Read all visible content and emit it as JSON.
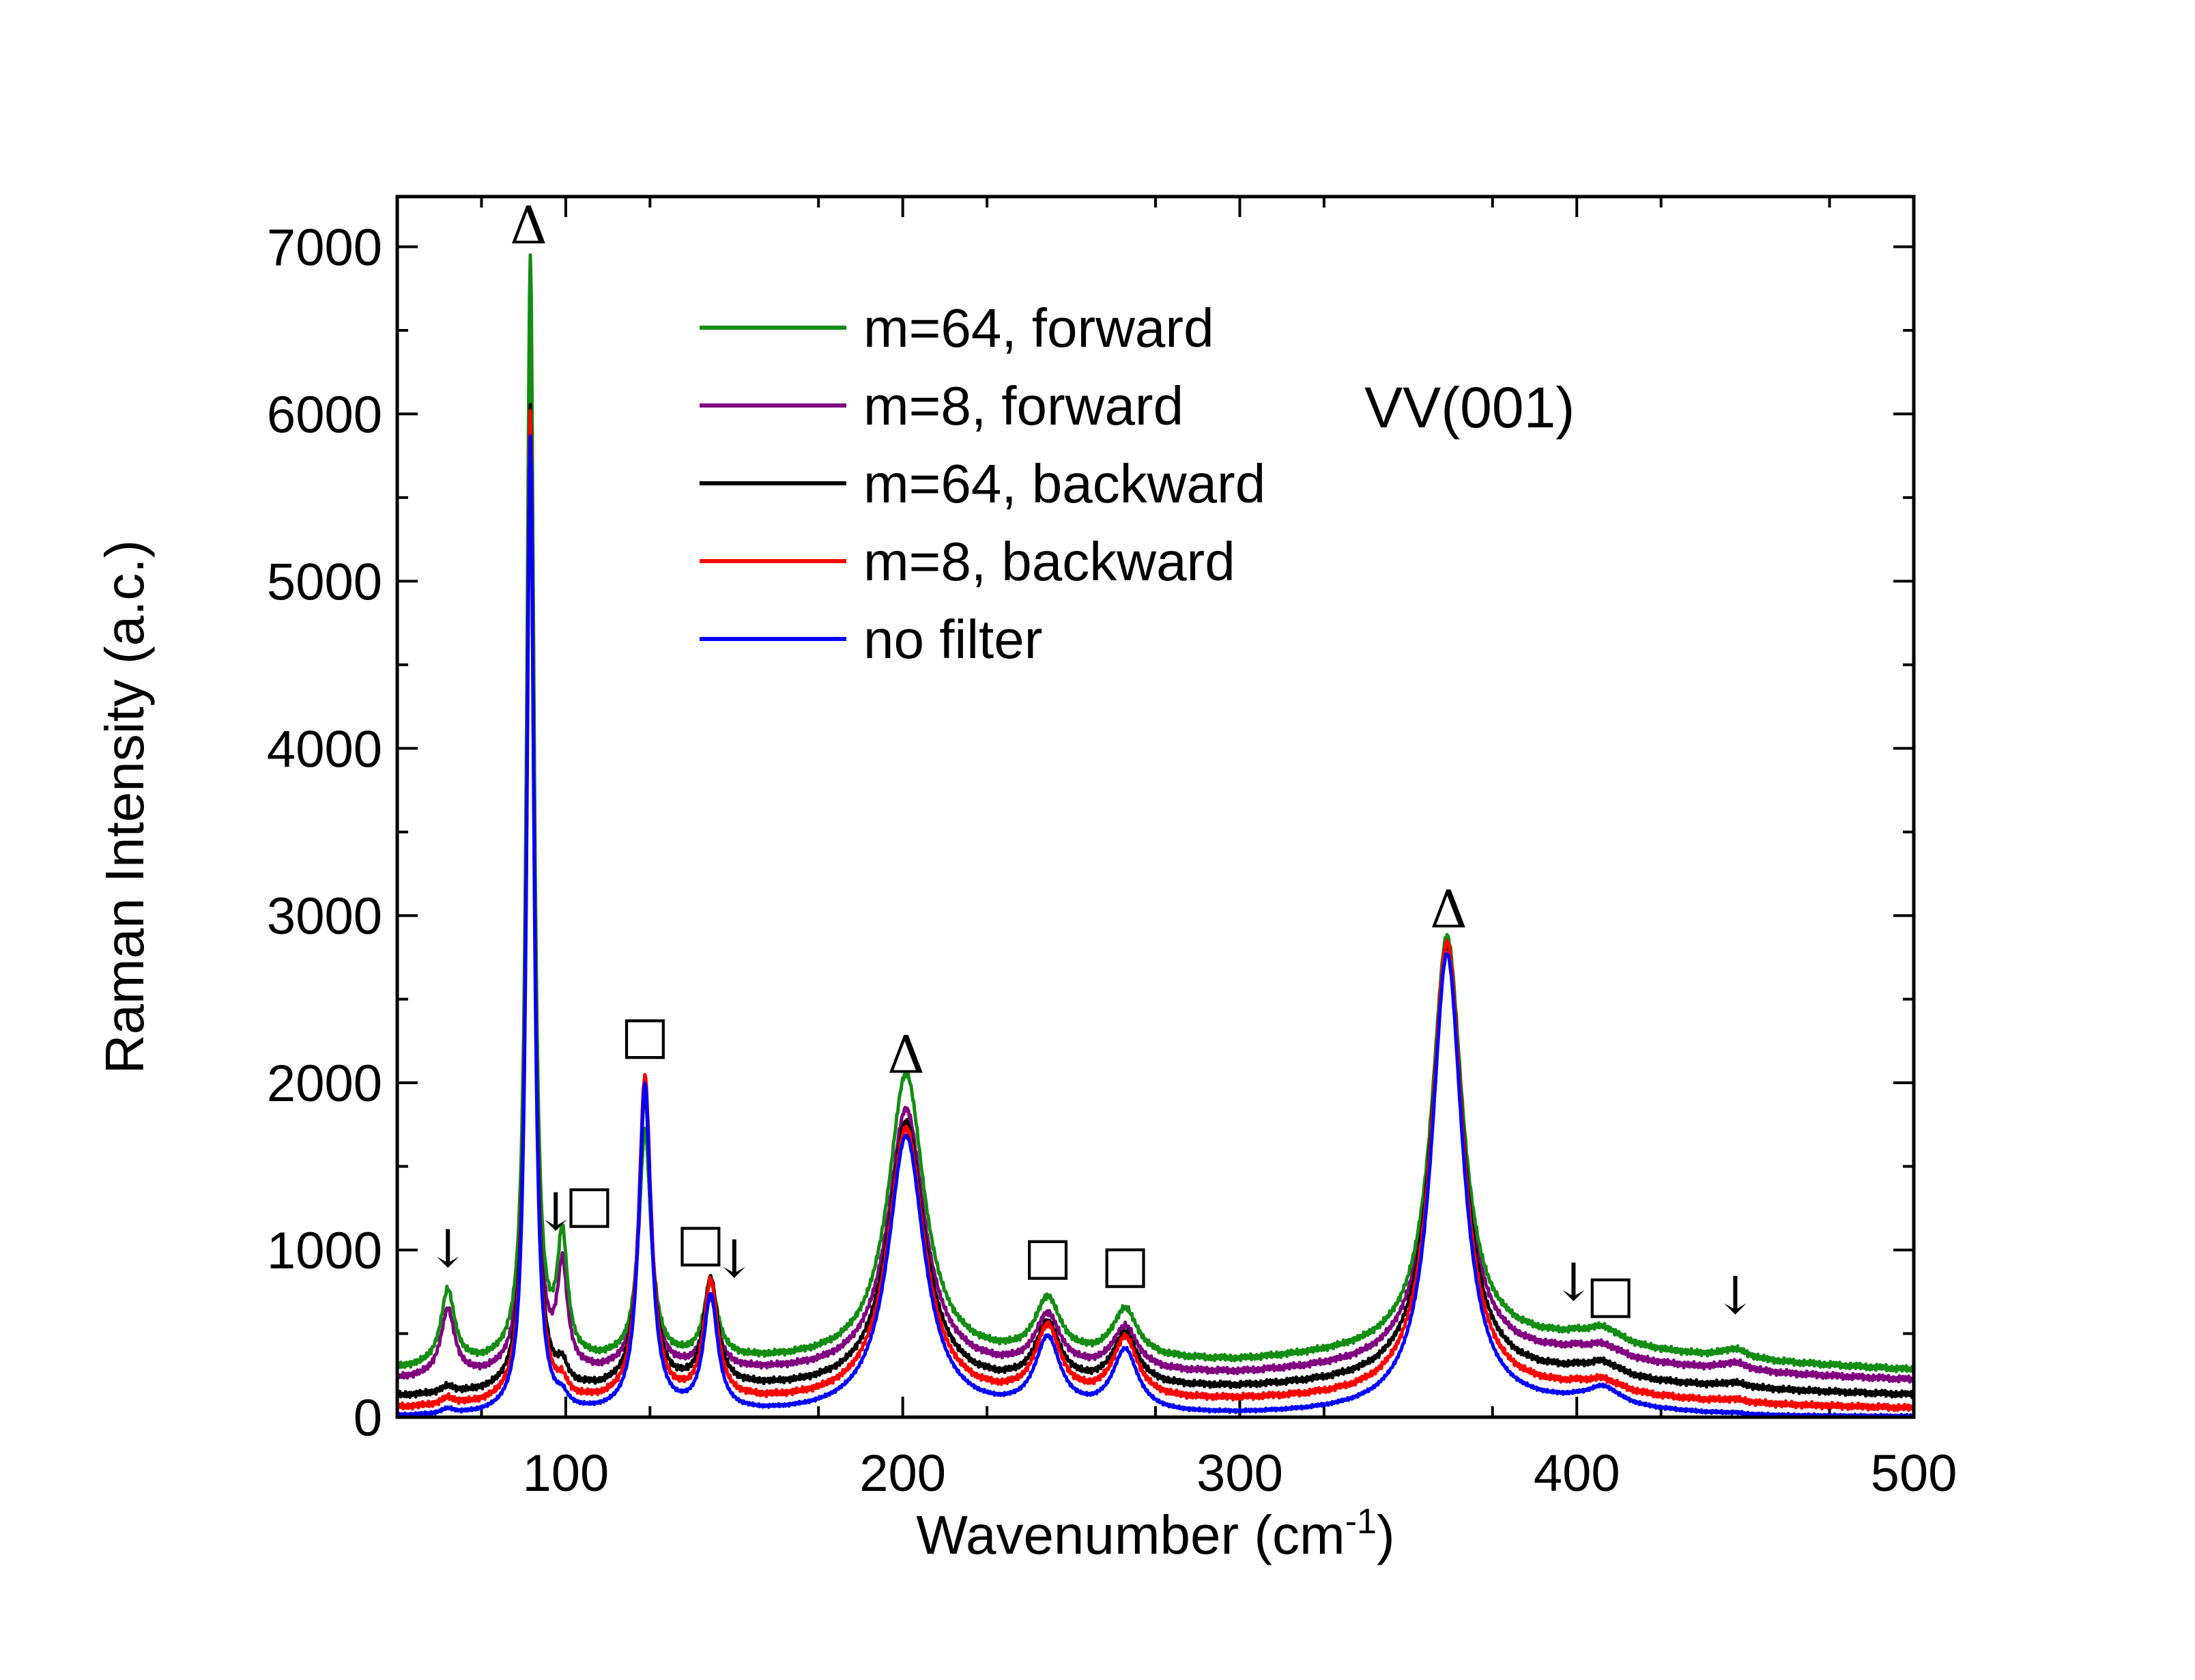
{
  "chart_data": {
    "type": "line",
    "xlabel": "Wavenumber (cm",
    "xlabel_sup": "-1",
    "xlabel_suffix": ")",
    "ylabel": "Raman Intensity (a.c.)",
    "xlim": [
      50,
      500
    ],
    "ylim": [
      0,
      7300
    ],
    "x_ticks": [
      100,
      200,
      300,
      400,
      500
    ],
    "y_ticks": [
      0,
      1000,
      2000,
      3000,
      4000,
      5000,
      6000,
      7000
    ],
    "annotation": "VV(001)",
    "legend_position": "upper-center",
    "series": [
      {
        "name": "m=64, forward",
        "color": "#138d13",
        "baseline": [
          [
            50,
            280
          ],
          [
            80,
            300
          ],
          [
            150,
            320
          ],
          [
            250,
            330
          ],
          [
            300,
            320
          ],
          [
            340,
            370
          ],
          [
            380,
            430
          ],
          [
            400,
            450
          ],
          [
            420,
            390
          ],
          [
            450,
            330
          ],
          [
            500,
            280
          ]
        ],
        "peaks": [
          [
            65,
            450,
            2.5
          ],
          [
            89.5,
            6600,
            1.3
          ],
          [
            99,
            700,
            1.8
          ],
          [
            123.5,
            1370,
            2.2
          ],
          [
            143,
            450,
            2.5
          ],
          [
            201,
            1720,
            6.5
          ],
          [
            243,
            340,
            4.5
          ],
          [
            266,
            290,
            4.5
          ],
          [
            361.5,
            2470,
            5.5
          ],
          [
            408,
            80,
            6
          ],
          [
            447,
            60,
            5
          ]
        ]
      },
      {
        "name": "m=8, forward",
        "color": "#800080",
        "baseline": [
          [
            50,
            220
          ],
          [
            80,
            230
          ],
          [
            150,
            255
          ],
          [
            250,
            255
          ],
          [
            300,
            245
          ],
          [
            340,
            285
          ],
          [
            380,
            340
          ],
          [
            400,
            365
          ],
          [
            420,
            310
          ],
          [
            450,
            260
          ],
          [
            500,
            220
          ]
        ],
        "peaks": [
          [
            65,
            400,
            2.5
          ],
          [
            89.5,
            5700,
            1.3
          ],
          [
            99,
            600,
            1.8
          ],
          [
            123.5,
            1450,
            2.2
          ],
          [
            143,
            420,
            2.5
          ],
          [
            201,
            1580,
            6.5
          ],
          [
            243,
            320,
            4.5
          ],
          [
            266,
            260,
            4.5
          ],
          [
            361.5,
            2500,
            5.5
          ],
          [
            408,
            60,
            6
          ],
          [
            447,
            50,
            5
          ]
        ]
      },
      {
        "name": "m=64, backward",
        "color": "#000000",
        "baseline": [
          [
            50,
            120
          ],
          [
            80,
            130
          ],
          [
            150,
            155
          ],
          [
            250,
            160
          ],
          [
            300,
            160
          ],
          [
            340,
            190
          ],
          [
            380,
            225
          ],
          [
            400,
            245
          ],
          [
            420,
            200
          ],
          [
            450,
            160
          ],
          [
            500,
            130
          ]
        ],
        "peaks": [
          [
            65,
            40,
            2.5
          ],
          [
            89.5,
            5900,
            1.3
          ],
          [
            99,
            110,
            1.8
          ],
          [
            123.5,
            1760,
            2.2
          ],
          [
            143,
            640,
            2.5
          ],
          [
            201,
            1600,
            6.5
          ],
          [
            243,
            360,
            4.5
          ],
          [
            266,
            310,
            4.5
          ],
          [
            361.5,
            2620,
            5.5
          ],
          [
            408,
            70,
            6
          ],
          [
            447,
            30,
            5
          ]
        ]
      },
      {
        "name": "m=8, backward",
        "color": "#ff0000",
        "baseline": [
          [
            50,
            50
          ],
          [
            80,
            60
          ],
          [
            150,
            75
          ],
          [
            250,
            80
          ],
          [
            300,
            85
          ],
          [
            340,
            100
          ],
          [
            380,
            130
          ],
          [
            400,
            150
          ],
          [
            420,
            110
          ],
          [
            450,
            70
          ],
          [
            500,
            50
          ]
        ],
        "peaks": [
          [
            65,
            40,
            2.5
          ],
          [
            89.5,
            5930,
            1.3
          ],
          [
            99,
            80,
            1.8
          ],
          [
            123.5,
            1940,
            2.2
          ],
          [
            143,
            700,
            2.5
          ],
          [
            201,
            1640,
            6.5
          ],
          [
            243,
            420,
            4.5
          ],
          [
            266,
            360,
            4.5
          ],
          [
            361.5,
            2720,
            5.5
          ],
          [
            408,
            60,
            6
          ],
          [
            447,
            20,
            5
          ]
        ]
      },
      {
        "name": "no filter",
        "color": "#0000ff",
        "baseline": [
          [
            50,
            0
          ],
          [
            80,
            0
          ],
          [
            150,
            0
          ],
          [
            250,
            0
          ],
          [
            300,
            0
          ],
          [
            340,
            10
          ],
          [
            380,
            40
          ],
          [
            400,
            60
          ],
          [
            420,
            30
          ],
          [
            450,
            0
          ],
          [
            500,
            0
          ]
        ],
        "peaks": [
          [
            65,
            30,
            2.5
          ],
          [
            89.5,
            5850,
            1.3
          ],
          [
            99,
            60,
            1.8
          ],
          [
            123.5,
            1960,
            2.2
          ],
          [
            143,
            690,
            2.5
          ],
          [
            201,
            1670,
            6.5
          ],
          [
            243,
            430,
            4.5
          ],
          [
            266,
            370,
            4.5
          ],
          [
            361.5,
            2740,
            5.5
          ],
          [
            408,
            100,
            6
          ],
          [
            447,
            10,
            5
          ]
        ]
      }
    ],
    "markers": [
      {
        "symbol": "Δ",
        "x": 89,
        "y": 7020
      },
      {
        "symbol": "↓",
        "x": 65,
        "y": 900
      },
      {
        "symbol": "↓",
        "x": 97,
        "y": 1120
      },
      {
        "symbol": "□",
        "x": 107,
        "y": 1170
      },
      {
        "symbol": "□",
        "x": 123.5,
        "y": 2180
      },
      {
        "symbol": "□",
        "x": 140,
        "y": 940
      },
      {
        "symbol": "↓",
        "x": 150,
        "y": 840
      },
      {
        "symbol": "Δ",
        "x": 201,
        "y": 2060
      },
      {
        "symbol": "□",
        "x": 243,
        "y": 860
      },
      {
        "symbol": "□",
        "x": 266,
        "y": 810
      },
      {
        "symbol": "Δ",
        "x": 362,
        "y": 2930
      },
      {
        "symbol": "↓",
        "x": 399,
        "y": 700
      },
      {
        "symbol": "□",
        "x": 410,
        "y": 630
      },
      {
        "symbol": "↓",
        "x": 447,
        "y": 620
      }
    ]
  }
}
